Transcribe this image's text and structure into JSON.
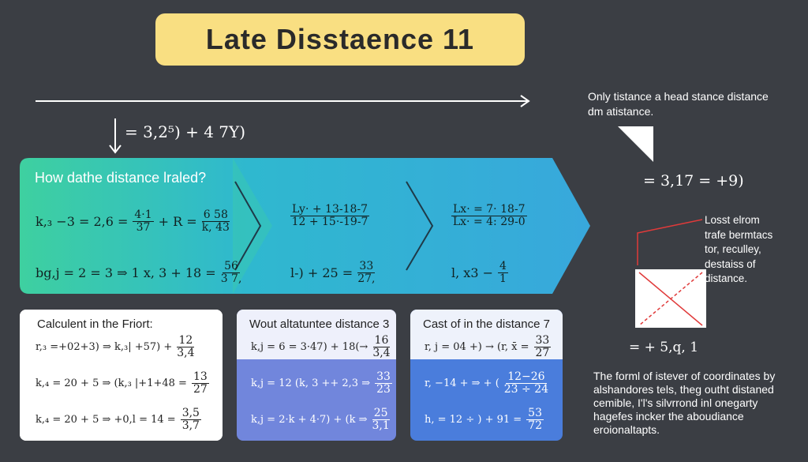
{
  "header": {
    "title": "Late Disstaence 11",
    "top_equation": "= 3,2⁵) + 4 7Y)"
  },
  "banner": {
    "question": "How dathe distance lraled?",
    "columns": [
      {
        "lines": [
          [
            "k,₃ −3 = 2,6 =",
            {
              "num": "4·1",
              "den": "37"
            },
            "+ R =",
            {
              "num": "6 58",
              "den": "k, 43"
            }
          ],
          [
            "bg,j = 2 = 3 ⇒ 1 x, 3 + 18 =",
            {
              "num": "56",
              "den": "3 7,"
            }
          ]
        ]
      },
      {
        "lines": [
          [
            {
              "num": "Ly· + 13-18-7",
              "den": "12 + 15·-19-7"
            }
          ],
          [
            "l-) + 25 =",
            {
              "num": "33",
              "den": "27,"
            }
          ]
        ]
      },
      {
        "lines": [
          [
            {
              "num": "Lx· = 7· 18-7",
              "den": "Lx· = 4: 29-0"
            }
          ],
          [
            "l, x3 −",
            {
              "num": "4",
              "den": "1"
            }
          ]
        ]
      }
    ]
  },
  "cards": [
    {
      "title": "Calculent in the Friort:",
      "lines": [
        [
          "r,₃ =+02+3) ⇒ k,₃| +57) +",
          {
            "num": "12",
            "den": "3,4"
          }
        ],
        [
          "k,₄ = 20 + 5 ⇒ (k,₃ |+1+48 =",
          {
            "num": "13",
            "den": "27"
          }
        ],
        [
          "k,₄ = 20 + 5 ⇒ +0,l = 14 =",
          {
            "num": "3,5",
            "den": "3,7"
          }
        ]
      ]
    },
    {
      "title": "Wout altatuntee distance 3",
      "lines": [
        [
          "k,j = 6 = 3·47) + 18(→",
          {
            "num": "16",
            "den": "3,4"
          }
        ],
        [
          "k,j = 12  (k, 3 ++ 2,3 ⇒",
          {
            "num": "33",
            "den": "23"
          }
        ],
        [
          "k,j = 2·k + 4·7) + (k ⇒",
          {
            "num": "25",
            "den": "3,1"
          }
        ]
      ]
    },
    {
      "title": "Cast of in the distance 7",
      "lines": [
        [
          "r, j = 04 +) → (r, x̄ =",
          {
            "num": "33",
            "den": "27"
          }
        ],
        [
          "r, −14 + ⇒ + (",
          {
            "num": "12−26",
            "den": "23 ÷ 24"
          }
        ],
        [
          "h, = 12 ÷ ) + 91 =",
          {
            "num": "53",
            "den": "72"
          }
        ]
      ]
    }
  ],
  "side": {
    "note": [
      "Only tistance a head stance distance",
      "dm atistance."
    ],
    "equation": "= 3,17 = +9)",
    "label": [
      "Losst elrom",
      "trafe bermtacs",
      "tor, reculley,",
      "destaiss of",
      "distance."
    ],
    "equation2": "= + 5,q, 1",
    "paragraph": [
      "The forml of istever of coordinates by",
      "alshandores tels, theg outht distaned",
      "cemible, I'l's silvrrond inl onegarty",
      "hagefes incker the aboudiance",
      "eroionaltapts."
    ]
  }
}
